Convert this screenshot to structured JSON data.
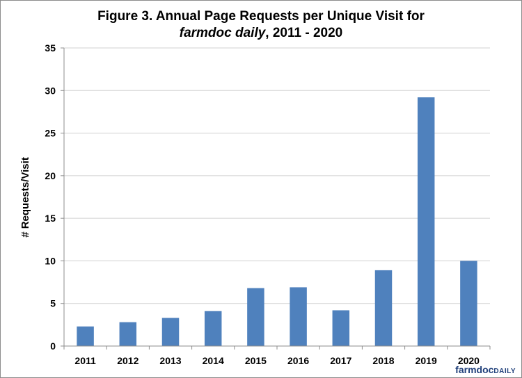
{
  "chart_data": {
    "type": "bar",
    "title_line1": "Figure 3. Annual Page Requests per Unique Visit for",
    "title_line2_italic": "farmdoc daily",
    "title_line2_rest": ", 2011 - 2020",
    "xlabel": "",
    "ylabel": "# Requests/Visit",
    "categories": [
      "2011",
      "2012",
      "2013",
      "2014",
      "2015",
      "2016",
      "2017",
      "2018",
      "2019",
      "2020"
    ],
    "values": [
      2.3,
      2.8,
      3.3,
      4.1,
      6.8,
      6.9,
      4.2,
      8.9,
      29.2,
      10.0
    ],
    "ylim": [
      0,
      35
    ],
    "yticks": [
      0,
      5,
      10,
      15,
      20,
      25,
      30,
      35
    ],
    "grid": true,
    "legend": "none",
    "bar_color": "#4f81bd"
  },
  "logo": {
    "part1": "farmdoc",
    "part2": "DAILY"
  }
}
